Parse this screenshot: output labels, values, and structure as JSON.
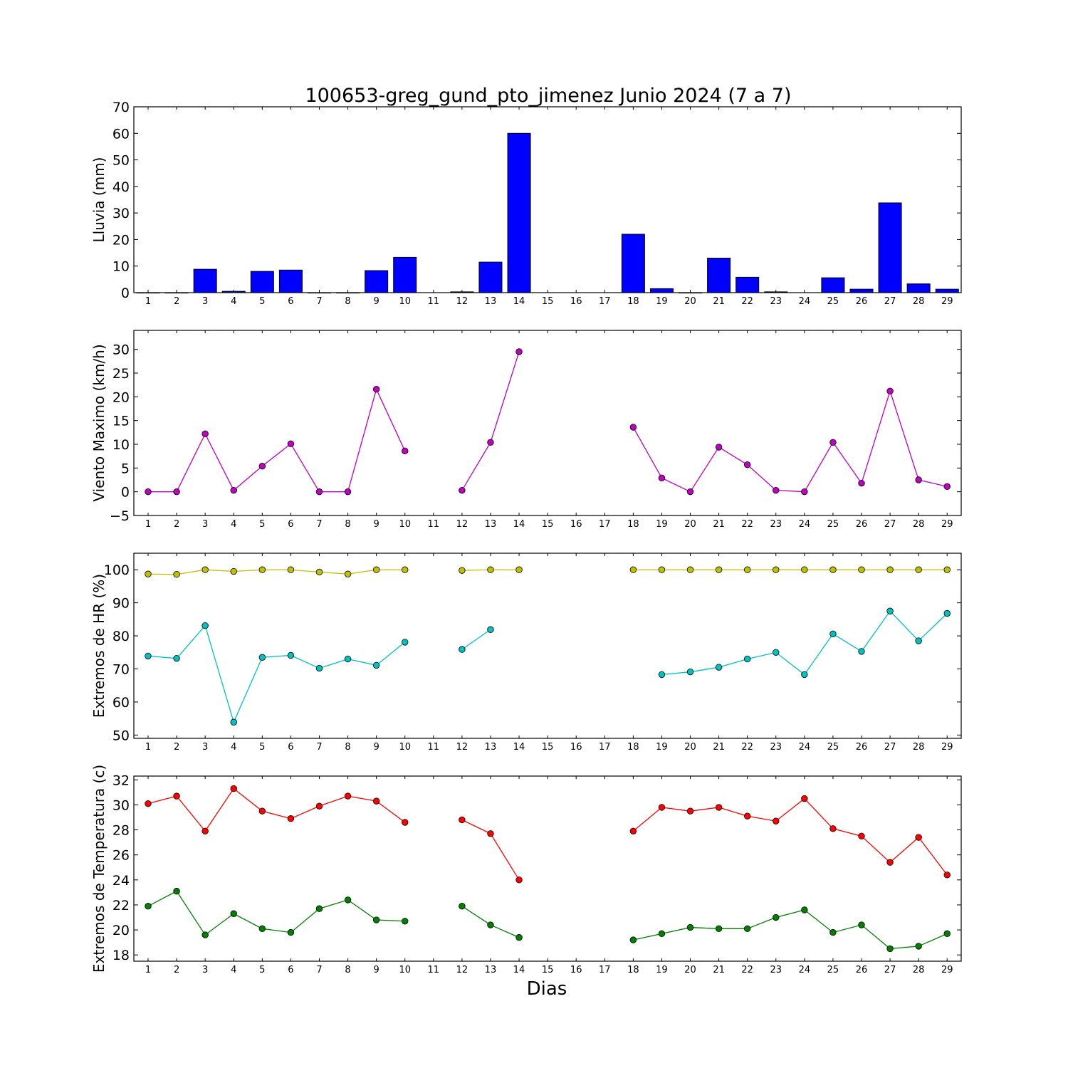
{
  "title": "100653-greg_gund_pto_jimenez Junio 2024  (7 a 7)",
  "xlabel": "Dias",
  "chart_data": [
    {
      "type": "bar",
      "ylabel": "Lluvia (mm)",
      "ylim": [
        0,
        70
      ],
      "yticks": [
        0,
        10,
        20,
        30,
        40,
        50,
        60,
        70
      ],
      "categories": [
        1,
        2,
        3,
        4,
        5,
        6,
        7,
        8,
        9,
        10,
        11,
        12,
        13,
        14,
        15,
        16,
        17,
        18,
        19,
        20,
        21,
        22,
        23,
        24,
        25,
        26,
        27,
        28,
        29
      ],
      "series": [
        {
          "color": "#0000ff",
          "values": [
            0,
            0,
            8.8,
            0.5,
            8,
            8.5,
            0,
            0,
            8.3,
            13.3,
            null,
            0.3,
            11.5,
            60,
            null,
            null,
            null,
            22,
            1.5,
            0,
            13,
            5.8,
            0.3,
            null,
            5.6,
            1.3,
            33.8,
            3.3,
            1.3
          ]
        }
      ]
    },
    {
      "type": "line",
      "ylabel": "Viento Maximo (km/h)",
      "ylim": [
        -5,
        34
      ],
      "yticks": [
        -5,
        0,
        5,
        10,
        15,
        20,
        25,
        30
      ],
      "categories": [
        1,
        2,
        3,
        4,
        5,
        6,
        7,
        8,
        9,
        10,
        11,
        12,
        13,
        14,
        15,
        16,
        17,
        18,
        19,
        20,
        21,
        22,
        23,
        24,
        25,
        26,
        27,
        28,
        29
      ],
      "series": [
        {
          "color": "#c000c0",
          "values": [
            0,
            0,
            12.2,
            0.3,
            5.4,
            10.1,
            0,
            0,
            21.6,
            8.6,
            null,
            0.3,
            10.4,
            29.5,
            null,
            null,
            null,
            13.6,
            2.9,
            0,
            9.4,
            5.7,
            0.3,
            0,
            10.4,
            1.8,
            21.2,
            2.5,
            1.1
          ]
        }
      ]
    },
    {
      "type": "line",
      "ylabel": "Extremos de HR (%)",
      "ylim": [
        49,
        105
      ],
      "yticks": [
        50,
        60,
        70,
        80,
        90,
        100
      ],
      "categories": [
        1,
        2,
        3,
        4,
        5,
        6,
        7,
        8,
        9,
        10,
        11,
        12,
        13,
        14,
        15,
        16,
        17,
        18,
        19,
        20,
        21,
        22,
        23,
        24,
        25,
        26,
        27,
        28,
        29
      ],
      "series": [
        {
          "color": "#c0c000",
          "values": [
            98.7,
            98.6,
            100,
            99.5,
            100,
            100,
            99.3,
            98.7,
            100,
            100,
            null,
            99.8,
            100,
            100,
            null,
            null,
            null,
            100,
            100,
            100,
            100,
            100,
            100,
            100,
            100,
            100,
            100,
            100,
            100
          ]
        },
        {
          "color": "#00c0c0",
          "values": [
            73.9,
            73.2,
            83.1,
            53.9,
            73.5,
            74.1,
            70.2,
            73,
            71.1,
            78.1,
            null,
            75.9,
            81.9,
            null,
            null,
            null,
            null,
            null,
            68.3,
            69.1,
            70.5,
            73,
            75,
            68.3,
            80.6,
            75.3,
            87.5,
            78.5,
            86.8
          ]
        }
      ]
    },
    {
      "type": "line",
      "ylabel": "Extremos de Temperatura (c)",
      "ylim": [
        17.5,
        32.3
      ],
      "yticks": [
        18,
        20,
        22,
        24,
        26,
        28,
        30,
        32
      ],
      "categories": [
        1,
        2,
        3,
        4,
        5,
        6,
        7,
        8,
        9,
        10,
        11,
        12,
        13,
        14,
        15,
        16,
        17,
        18,
        19,
        20,
        21,
        22,
        23,
        24,
        25,
        26,
        27,
        28,
        29
      ],
      "series": [
        {
          "color": "#ff0000",
          "values": [
            30.1,
            30.7,
            27.9,
            31.3,
            29.5,
            28.9,
            29.9,
            30.7,
            30.3,
            28.6,
            null,
            28.8,
            27.7,
            24,
            null,
            null,
            null,
            27.9,
            29.8,
            29.5,
            29.8,
            29.1,
            28.7,
            30.5,
            28.1,
            27.5,
            25.4,
            27.4,
            24.4
          ]
        },
        {
          "color": "#008000",
          "values": [
            21.9,
            23.1,
            19.6,
            21.3,
            20.1,
            19.8,
            21.7,
            22.4,
            20.8,
            20.7,
            null,
            21.9,
            20.4,
            19.4,
            null,
            null,
            null,
            19.2,
            19.7,
            20.2,
            20.1,
            20.1,
            21,
            21.6,
            19.8,
            20.4,
            18.5,
            18.7,
            19.7
          ]
        }
      ]
    }
  ]
}
